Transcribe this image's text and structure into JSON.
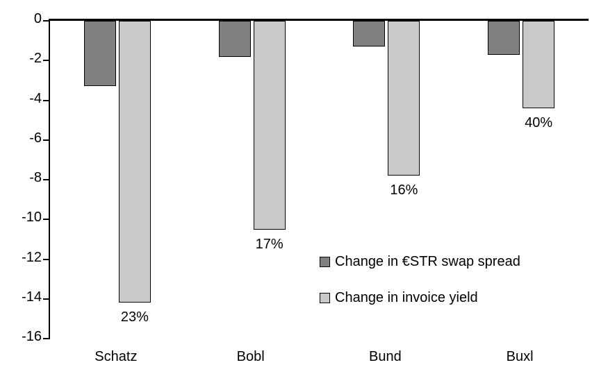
{
  "chart_data": {
    "type": "bar",
    "categories": [
      "Schatz",
      "Bobl",
      "Bund",
      "Buxl"
    ],
    "series": [
      {
        "name": "Change in €STR swap spread",
        "color": "#808080",
        "values": [
          -3.3,
          -1.8,
          -1.3,
          -1.7
        ]
      },
      {
        "name": "Change in invoice yield",
        "color": "#c9c9c9",
        "values": [
          -14.2,
          -10.5,
          -7.8,
          -4.4
        ],
        "labels": [
          "23%",
          "17%",
          "16%",
          "40%"
        ]
      }
    ],
    "title": "",
    "xlabel": "",
    "ylabel": "",
    "ylim": [
      -16,
      0
    ],
    "y_ticks": [
      "0",
      "-2",
      "-4",
      "-6",
      "-8",
      "-10",
      "-12",
      "-14",
      "-16"
    ],
    "grid": false,
    "legend_position": "inside-center-right"
  },
  "colors": {
    "axis": "#000000",
    "bar_border": "#000000",
    "background": "#ffffff"
  }
}
